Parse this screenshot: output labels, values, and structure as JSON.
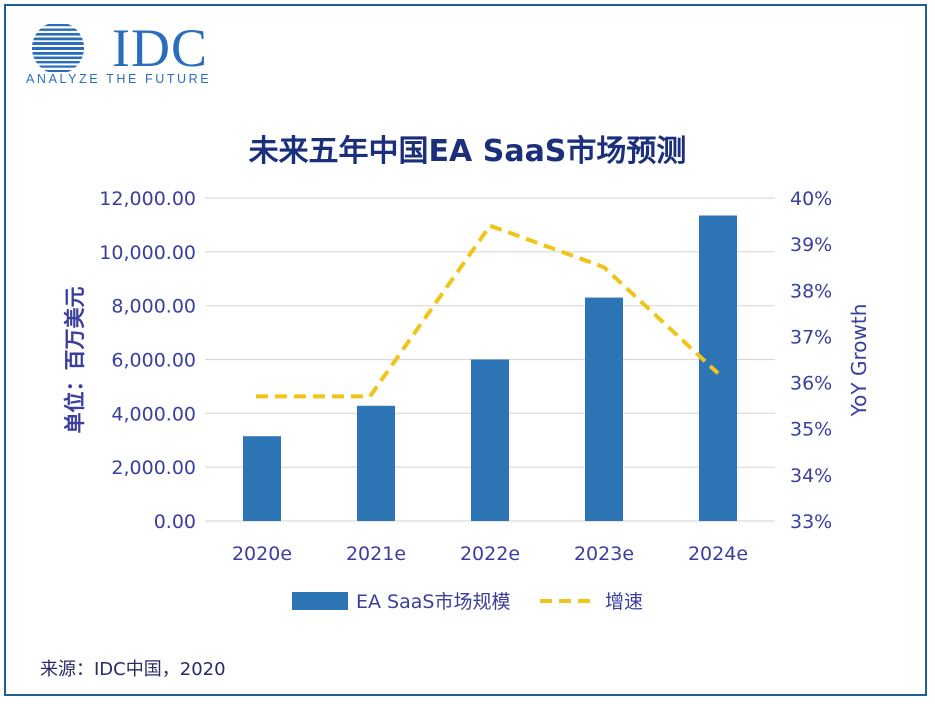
{
  "logo": {
    "brand": "IDC",
    "tagline": "ANALYZE THE FUTURE"
  },
  "source": "来源：IDC中国，2020",
  "colors": {
    "bar": "#2e75b6",
    "line": "#f0c419",
    "axis_text": "#3a3f9e",
    "title": "#1b2f7a",
    "grid": "#d9d9d9"
  },
  "chart_data": {
    "type": "bar",
    "title": "未来五年中国EA SaaS市场预测",
    "categories": [
      "2020e",
      "2021e",
      "2022e",
      "2023e",
      "2024e"
    ],
    "ylabel": "单位：百万美元",
    "y2label": "YoY Growth",
    "ylim": [
      0,
      12000
    ],
    "y2lim": [
      33,
      40
    ],
    "yticks": [
      "0.00",
      "2,000.00",
      "4,000.00",
      "6,000.00",
      "8,000.00",
      "10,000.00",
      "12,000.00"
    ],
    "y2ticks": [
      "33%",
      "34%",
      "35%",
      "36%",
      "37%",
      "38%",
      "39%",
      "40%"
    ],
    "series": [
      {
        "name": "EA SaaS市场规模",
        "type": "bar",
        "axis": "left",
        "values": [
          3150,
          4280,
          6000,
          8300,
          11350
        ]
      },
      {
        "name": "增速",
        "type": "line",
        "style": "dashed",
        "axis": "right",
        "values": [
          35.7,
          35.7,
          39.4,
          38.5,
          36.2
        ]
      }
    ],
    "grid": true,
    "legend": "bottom"
  }
}
